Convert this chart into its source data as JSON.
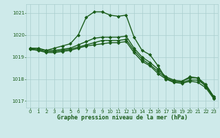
{
  "title": "Graphe pression niveau de la mer (hPa)",
  "background_color": "#ceeaea",
  "grid_color": "#aacece",
  "line_color": "#1a5c1a",
  "xlim": [
    -0.5,
    23.5
  ],
  "ylim": [
    1016.7,
    1021.4
  ],
  "yticks": [
    1017,
    1018,
    1019,
    1020,
    1021
  ],
  "xticks": [
    0,
    1,
    2,
    3,
    4,
    5,
    6,
    7,
    8,
    9,
    10,
    11,
    12,
    13,
    14,
    15,
    16,
    17,
    18,
    19,
    20,
    21,
    22,
    23
  ],
  "lines": [
    {
      "x": [
        0,
        1,
        2,
        3,
        4,
        5,
        6,
        7,
        8,
        9,
        10,
        11,
        12,
        13,
        14,
        15,
        16,
        17,
        18,
        19,
        20,
        21,
        22,
        23
      ],
      "y": [
        1019.4,
        1019.4,
        1019.3,
        1019.4,
        1019.5,
        1019.6,
        1020.0,
        1020.8,
        1021.05,
        1021.05,
        1020.9,
        1020.85,
        1020.9,
        1019.9,
        1019.3,
        1019.1,
        1018.6,
        1018.0,
        1017.85,
        1017.9,
        1018.1,
        1018.05,
        1017.65,
        1017.2
      ],
      "marker": "D",
      "markersize": 2.2,
      "linewidth": 1.0
    },
    {
      "x": [
        0,
        1,
        2,
        3,
        4,
        5,
        6,
        7,
        8,
        9,
        10,
        11,
        12,
        13,
        14,
        15,
        16,
        17,
        18,
        19,
        20,
        21,
        22,
        23
      ],
      "y": [
        1019.4,
        1019.35,
        1019.3,
        1019.3,
        1019.35,
        1019.4,
        1019.55,
        1019.7,
        1019.85,
        1019.9,
        1019.9,
        1019.9,
        1019.95,
        1019.4,
        1019.0,
        1018.75,
        1018.45,
        1018.1,
        1017.95,
        1017.9,
        1018.05,
        1018.05,
        1017.75,
        1017.2
      ],
      "marker": "D",
      "markersize": 2.2,
      "linewidth": 1.0
    },
    {
      "x": [
        0,
        1,
        2,
        3,
        4,
        5,
        6,
        7,
        8,
        9,
        10,
        11,
        12,
        13,
        14,
        15,
        16,
        17,
        18,
        19,
        20,
        21,
        22,
        23
      ],
      "y": [
        1019.35,
        1019.3,
        1019.25,
        1019.25,
        1019.3,
        1019.35,
        1019.45,
        1019.55,
        1019.65,
        1019.75,
        1019.75,
        1019.75,
        1019.8,
        1019.3,
        1018.9,
        1018.65,
        1018.35,
        1018.05,
        1017.9,
        1017.85,
        1017.95,
        1017.95,
        1017.7,
        1017.15
      ],
      "marker": "D",
      "markersize": 2.2,
      "linewidth": 1.0
    },
    {
      "x": [
        0,
        1,
        2,
        3,
        4,
        5,
        6,
        7,
        8,
        9,
        10,
        11,
        12,
        13,
        14,
        15,
        16,
        17,
        18,
        19,
        20,
        21,
        22,
        23
      ],
      "y": [
        1019.35,
        1019.3,
        1019.2,
        1019.2,
        1019.25,
        1019.3,
        1019.4,
        1019.5,
        1019.55,
        1019.6,
        1019.65,
        1019.65,
        1019.7,
        1019.2,
        1018.8,
        1018.6,
        1018.25,
        1018.0,
        1017.85,
        1017.8,
        1017.9,
        1017.85,
        1017.6,
        1017.1
      ],
      "marker": "D",
      "markersize": 2.2,
      "linewidth": 1.0
    }
  ],
  "tick_fontsize": 5.0,
  "xlabel_fontsize": 6.0,
  "fig_width": 3.2,
  "fig_height": 2.0,
  "dpi": 100
}
